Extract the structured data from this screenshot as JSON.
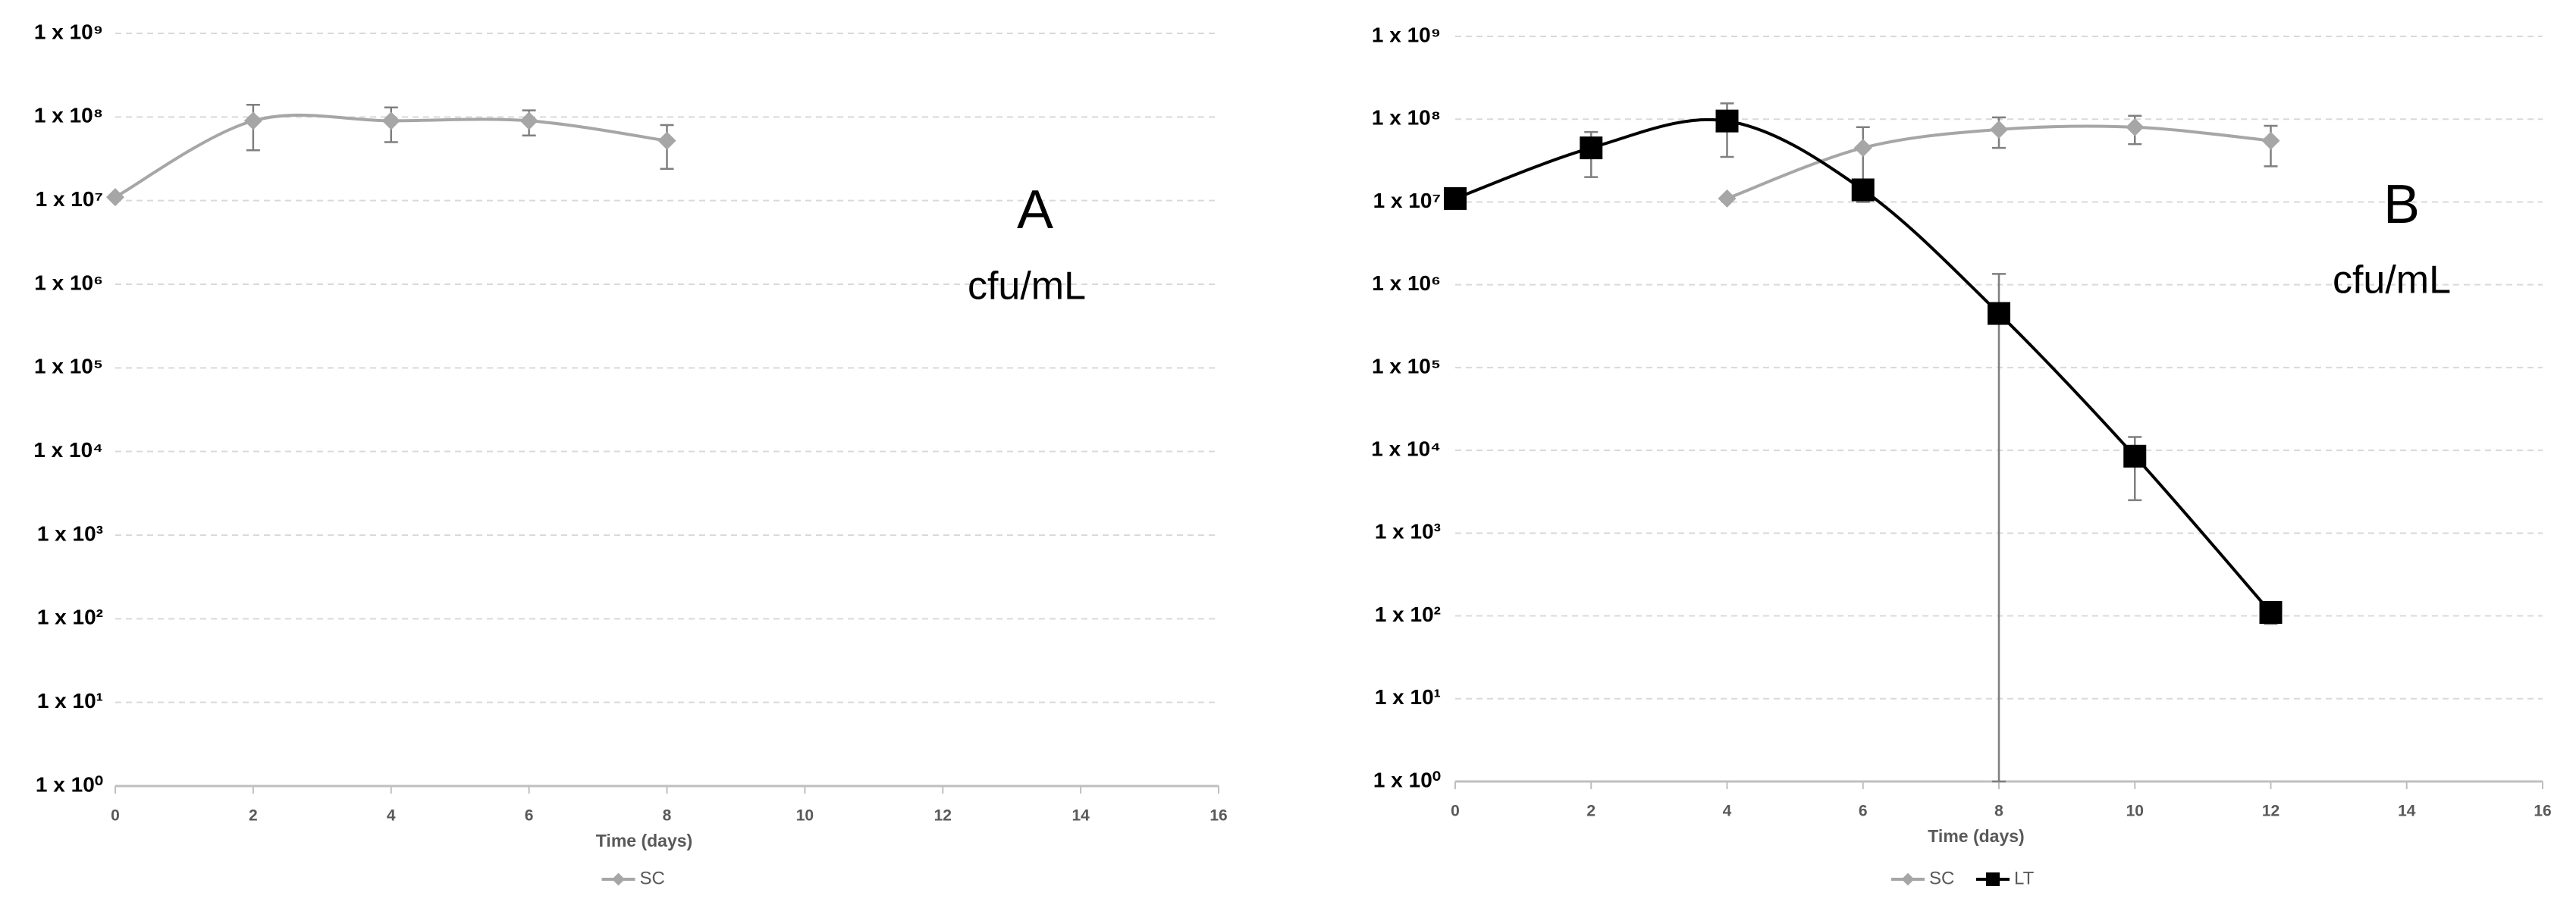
{
  "chart_data": [
    {
      "type": "line",
      "panel_label": "A",
      "unit_label": "cfu/mL",
      "x_label": "Time (days)",
      "xlim": [
        0,
        16
      ],
      "xticks": [
        0,
        2,
        4,
        6,
        8,
        10,
        12,
        14,
        16
      ],
      "ylim": [
        1,
        1000000000
      ],
      "log_y": true,
      "grid": true,
      "legend": "bottom",
      "yticks": [
        {
          "value": 1,
          "label": "1 x 10⁰"
        },
        {
          "value": 10,
          "label": "1 x 10¹"
        },
        {
          "value": 100,
          "label": "1 x 10²"
        },
        {
          "value": 1000,
          "label": "1 x 10³"
        },
        {
          "value": 10000,
          "label": "1 x 10⁴"
        },
        {
          "value": 100000,
          "label": "1 x 10⁵"
        },
        {
          "value": 1000000,
          "label": "1 x 10⁶"
        },
        {
          "value": 10000000,
          "label": "1 x 10⁷"
        },
        {
          "value": 100000000,
          "label": "1 x 10⁸"
        },
        {
          "value": 1000000000,
          "label": "1 x 10⁹"
        }
      ],
      "series": [
        {
          "name": "SC",
          "color": "#a6a6a6",
          "marker": "diamond",
          "x": [
            0,
            2,
            4,
            6,
            8
          ],
          "values": [
            11000000,
            90000000,
            90000000,
            90000000,
            52000000
          ],
          "errors": [
            null,
            50000000,
            40000000,
            30000000,
            28000000
          ]
        }
      ]
    },
    {
      "type": "line",
      "panel_label": "B",
      "unit_label": "cfu/mL",
      "x_label": "Time (days)",
      "xlim": [
        0,
        16
      ],
      "xticks": [
        0,
        2,
        4,
        6,
        8,
        10,
        12,
        14,
        16
      ],
      "ylim": [
        1,
        1000000000
      ],
      "log_y": true,
      "grid": true,
      "legend": "bottom",
      "yticks": [
        {
          "value": 1,
          "label": "1 x 10⁰"
        },
        {
          "value": 10,
          "label": "1 x 10¹"
        },
        {
          "value": 100,
          "label": "1 x 10²"
        },
        {
          "value": 1000,
          "label": "1 x 10³"
        },
        {
          "value": 10000,
          "label": "1 x 10⁴"
        },
        {
          "value": 100000,
          "label": "1 x 10⁵"
        },
        {
          "value": 1000000,
          "label": "1 x 10⁶"
        },
        {
          "value": 10000000,
          "label": "1 x 10⁷"
        },
        {
          "value": 100000000,
          "label": "1 x 10⁸"
        },
        {
          "value": 1000000000,
          "label": "1 x 10⁹"
        }
      ],
      "series": [
        {
          "name": "SC",
          "color": "#a6a6a6",
          "marker": "diamond",
          "x": [
            4,
            6,
            8,
            10,
            12
          ],
          "values": [
            11000000,
            45000000,
            75000000,
            80000000,
            55000000
          ],
          "errors": [
            null,
            35000000,
            30000000,
            30000000,
            28000000
          ]
        },
        {
          "name": "LT",
          "color": "#000000",
          "marker": "square",
          "x": [
            0,
            2,
            4,
            6,
            8,
            10,
            12
          ],
          "values": [
            11000000,
            45000000,
            95000000,
            14000000,
            450000,
            8500,
            110
          ],
          "errors": [
            null,
            25000000,
            60000000,
            null,
            900000,
            6000,
            30
          ]
        }
      ]
    }
  ]
}
